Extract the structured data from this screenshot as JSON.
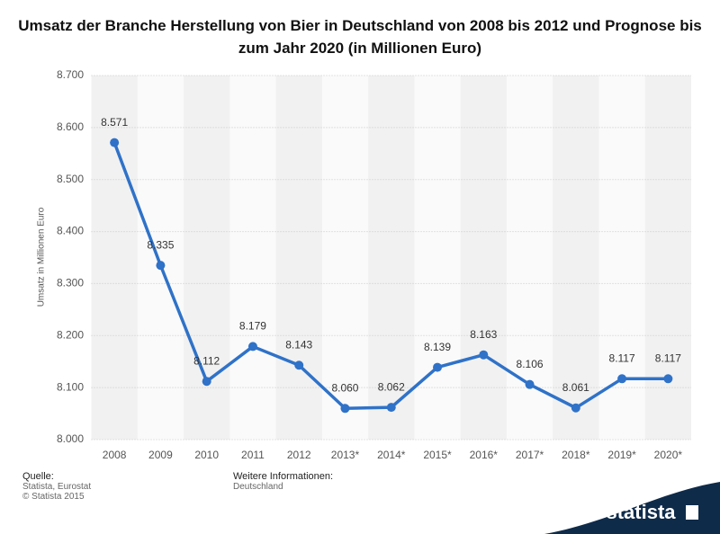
{
  "chart_data": {
    "type": "line",
    "title": "Umsatz der Branche Herstellung von Bier in Deutschland von 2008 bis 2012 und Prognose bis zum Jahr 2020 (in Millionen Euro)",
    "y_label": "Umsatz in Millionen Euro",
    "categories": [
      "2008",
      "2009",
      "2010",
      "2011",
      "2012",
      "2013*",
      "2014*",
      "2015*",
      "2016*",
      "2017*",
      "2018*",
      "2019*",
      "2020*"
    ],
    "values": [
      8571,
      8335,
      8112,
      8179,
      8143,
      8060,
      8062,
      8139,
      8163,
      8106,
      8061,
      8117,
      8117
    ],
    "value_labels": [
      "8.571",
      "8.335",
      "8.112",
      "8.179",
      "8.143",
      "8.060",
      "8.062",
      "8.139",
      "8.163",
      "8.106",
      "8.061",
      "8.117",
      "8.117"
    ],
    "color": "#2f72c8",
    "ylim": [
      8000,
      8700
    ],
    "yticks": [
      {
        "value": 8000,
        "label": "8.000"
      },
      {
        "value": 8100,
        "label": "8.100"
      },
      {
        "value": 8200,
        "label": "8.200"
      },
      {
        "value": 8300,
        "label": "8.300"
      },
      {
        "value": 8400,
        "label": "8.400"
      },
      {
        "value": 8500,
        "label": "8.500"
      },
      {
        "value": 8600,
        "label": "8.600"
      },
      {
        "value": 8700,
        "label": "8.700"
      }
    ],
    "grid": true
  },
  "footer": {
    "source_title": "Quelle:",
    "source": "Statista, Eurostat",
    "copyright": "© Statista 2015",
    "info_title": "Weitere Informationen:",
    "info": "Deutschland",
    "logo": "statista"
  }
}
